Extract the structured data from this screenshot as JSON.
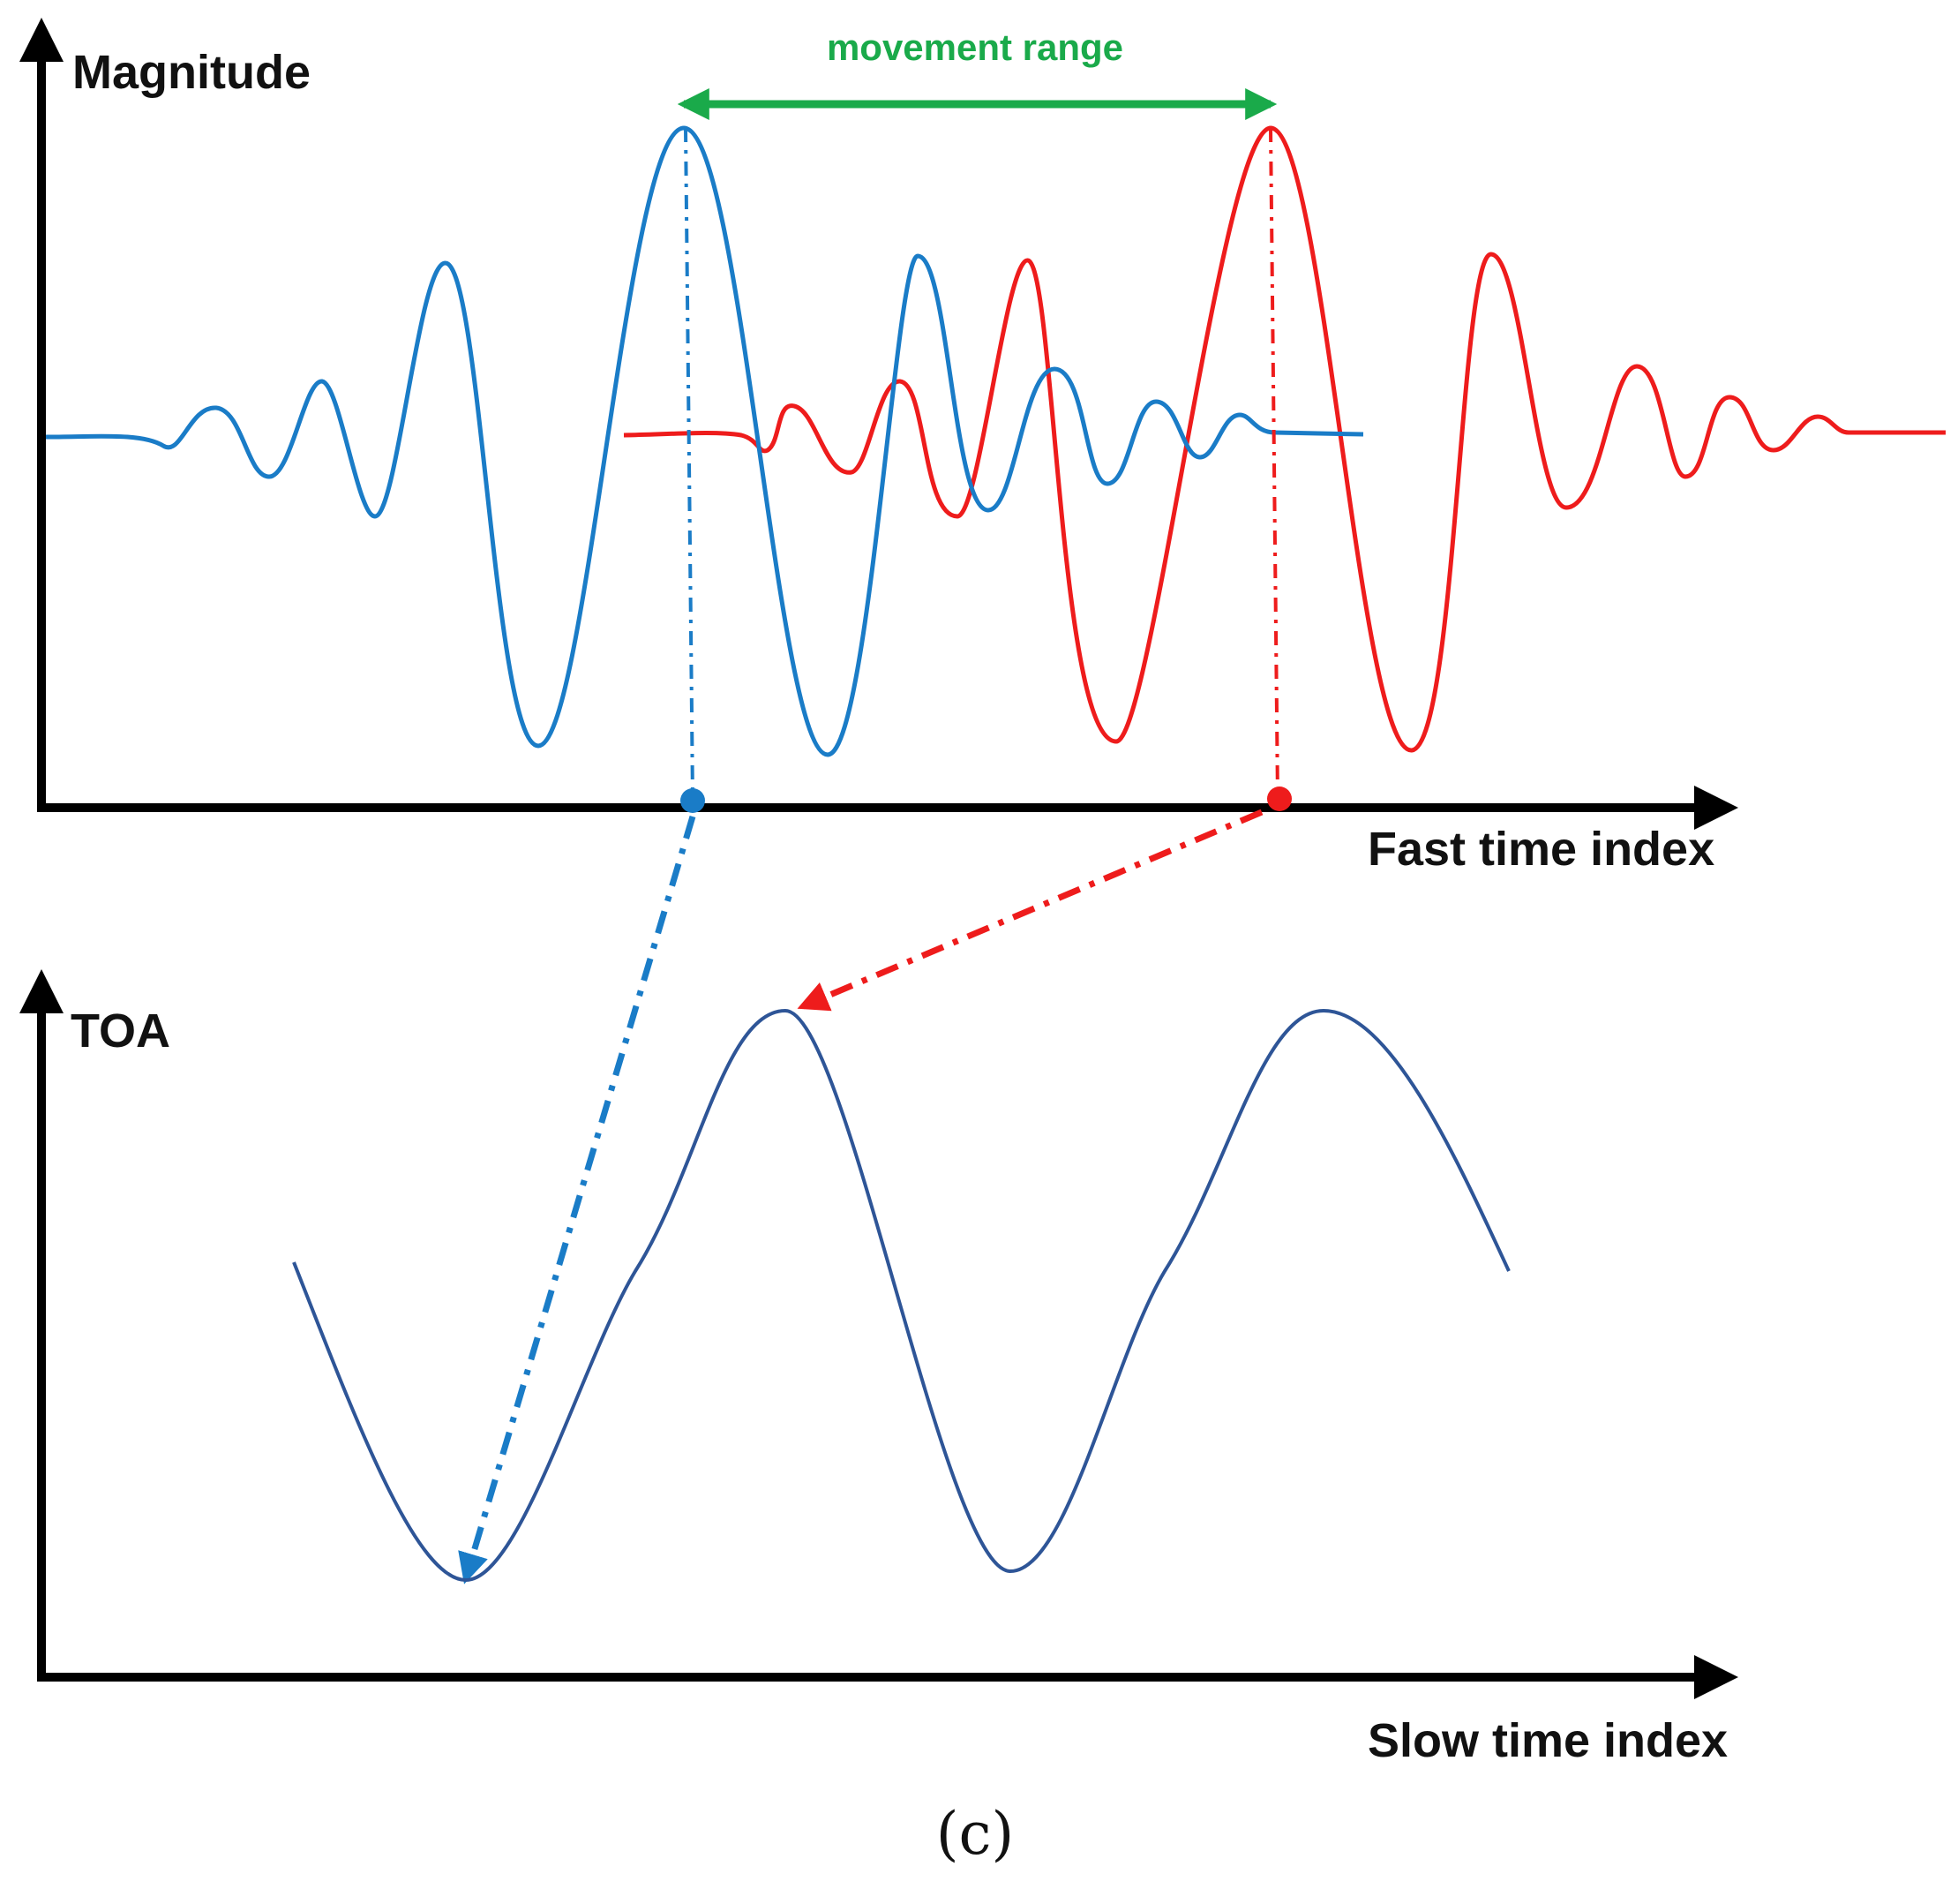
{
  "labels": {
    "movement_range": "movement range",
    "magnitude": "Magnitude",
    "fast_time_index": "Fast time index",
    "toa": "TOA",
    "slow_time_index": "Slow time index",
    "caption": "(c)"
  },
  "colors": {
    "axis": "#000000",
    "blue_pulse": "#1a7cc7",
    "red_pulse": "#ee1c1c",
    "toa_curve": "#2e5597",
    "movement_range": "#1aaa4a",
    "text": "#111111"
  },
  "icons": {
    "axis_arrowhead": "arrowhead-icon",
    "peak_marker": "dot-marker-icon"
  }
}
